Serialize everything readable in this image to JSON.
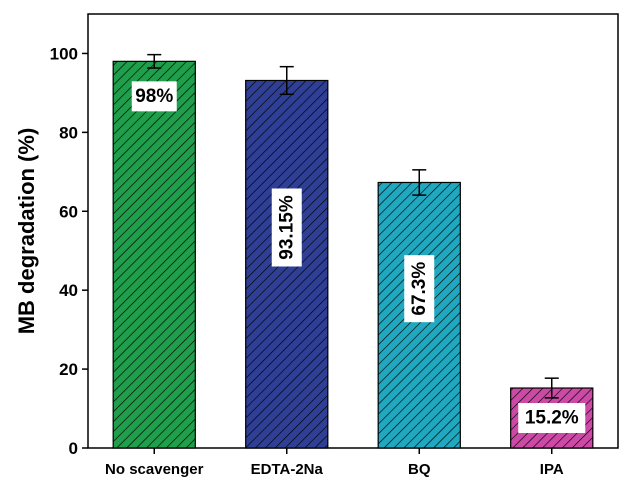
{
  "chart_data": {
    "type": "bar",
    "title": "",
    "xlabel": "",
    "ylabel": "MB degradation (%)",
    "ylim": [
      0,
      110
    ],
    "yticks": [
      0,
      20,
      40,
      60,
      80,
      100
    ],
    "grid": false,
    "legend": "none",
    "categories": [
      "No scavenger",
      "EDTA-2Na",
      "BQ",
      "IPA"
    ],
    "values": [
      98,
      93.15,
      67.3,
      15.2
    ],
    "errors": [
      1.7,
      3.5,
      3.2,
      2.5
    ],
    "data_labels": [
      "98%",
      "93.15%",
      "67.3%",
      "15.2%"
    ],
    "label_orientation": [
      "horizontal",
      "vertical",
      "vertical",
      "horizontal"
    ],
    "colors": [
      "#1f9e4c",
      "#2f3f96",
      "#1fa8bf",
      "#cc4aa6"
    ]
  }
}
